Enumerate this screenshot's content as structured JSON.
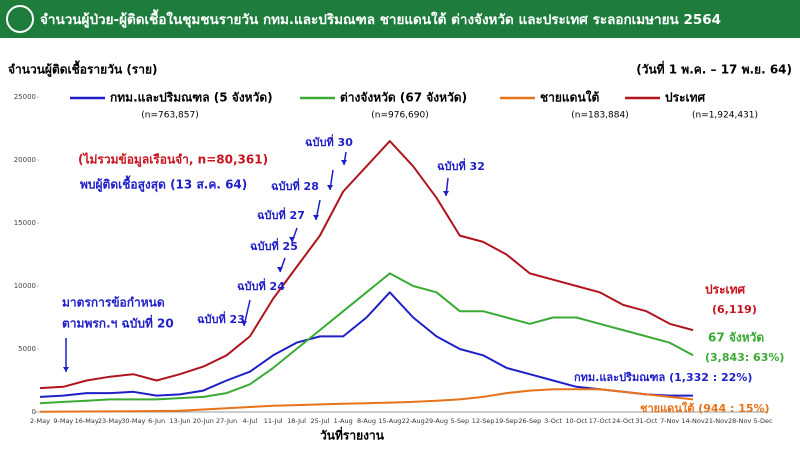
{
  "chart_data": {
    "type": "line",
    "title": "จำนวนผู้ป่วย-ผู้ติดเชื้อในชุมชนรายวัน กทม.และปริมณฑล ชายแดนใต้ ต่างจังหวัด และประเทศ ระลอกเมษายน 2564",
    "subtitle": "(วันที่ 1 พ.ค. – 17 พ.ย. 64)",
    "y_label": "จำนวนผู้ติดเชื้อรายวัน (ราย)",
    "x_label": "วันที่รายงาน",
    "categories": [
      "2-May",
      "9-May",
      "16-May",
      "23-May",
      "30-May",
      "6-Jun",
      "13-Jun",
      "20-Jun",
      "27-Jun",
      "4-Jul",
      "11-Jul",
      "18-Jul",
      "25-Jul",
      "1-Aug",
      "8-Aug",
      "15-Aug",
      "22-Aug",
      "29-Aug",
      "5-Sep",
      "12-Sep",
      "19-Sep",
      "26-Sep",
      "3-Oct",
      "10-Oct",
      "17-Oct",
      "24-Oct",
      "31-Oct",
      "7-Nov",
      "14-Nov",
      "21-Nov",
      "28-Nov",
      "5-Dec"
    ],
    "series": [
      {
        "name": "กทม.และปริมณฑล (5 จังหวัด)",
        "total": "(n=763,857)",
        "color": "#1f1fc8",
        "values": [
          1200,
          1300,
          1500,
          1500,
          1600,
          1300,
          1400,
          1700,
          2500,
          3200,
          4500,
          5500,
          6000,
          6000,
          7500,
          9500,
          7500,
          6000,
          5000,
          4500,
          3500,
          3000,
          2500,
          2000,
          1800,
          1600,
          1400,
          1300,
          1300,
          null,
          null,
          null
        ]
      },
      {
        "name": "ต่างจังหวัด (67 จังหวัด)",
        "total": "(n=976,690)",
        "color": "#3aaa35",
        "values": [
          700,
          800,
          900,
          1000,
          1000,
          1000,
          1100,
          1200,
          1500,
          2200,
          3500,
          5000,
          6500,
          8000,
          9500,
          11000,
          10000,
          9500,
          8000,
          8000,
          7500,
          7000,
          7500,
          7500,
          7000,
          6500,
          6000,
          5500,
          4500,
          null,
          null,
          null
        ]
      },
      {
        "name": "ชายแดนใต้",
        "total": "(n=183,884)",
        "color": "#e8731a",
        "values": [
          20,
          30,
          40,
          50,
          60,
          80,
          100,
          200,
          300,
          400,
          500,
          550,
          600,
          650,
          700,
          750,
          800,
          900,
          1000,
          1200,
          1500,
          1700,
          1800,
          1800,
          1800,
          1600,
          1400,
          1200,
          1000,
          null,
          null,
          null
        ]
      },
      {
        "name": "ประเทศ",
        "total": "(n=1,924,431)",
        "color": "#b0141e",
        "values": [
          1900,
          2000,
          2500,
          2800,
          3000,
          2500,
          3000,
          3600,
          4500,
          6000,
          9000,
          11500,
          14000,
          17500,
          19500,
          21500,
          19500,
          17000,
          14000,
          13500,
          12500,
          11000,
          10500,
          10000,
          9500,
          8500,
          8000,
          7000,
          6500,
          null,
          null,
          null
        ]
      }
    ],
    "ylim": [
      0,
      25000
    ],
    "yticks": [
      0,
      5000,
      10000,
      15000,
      20000,
      25000
    ],
    "annotations": [
      {
        "text": "(ไม่รวมข้อมูลเรือนจำ, n=80,361)",
        "color": "#c8141e"
      },
      {
        "text": "พบผู้ติดเชื้อสูงสุด (13 ส.ค. 64)",
        "color": "#1f1fc8"
      },
      {
        "text": "มาตรการข้อกำหนด",
        "color": "#1f1fc8"
      },
      {
        "text": "ตามพรก.ฯ ฉบับที่ 20",
        "color": "#1f1fc8"
      },
      {
        "text": "ฉบับที่ 23",
        "color": "#1f1fc8"
      },
      {
        "text": "ฉบับที่ 24",
        "color": "#1f1fc8"
      },
      {
        "text": "ฉบับที่ 25",
        "color": "#1f1fc8"
      },
      {
        "text": "ฉบับที่ 27",
        "color": "#1f1fc8"
      },
      {
        "text": "ฉบับที่ 28",
        "color": "#1f1fc8"
      },
      {
        "text": "ฉบับที่ 30",
        "color": "#1f1fc8"
      },
      {
        "text": "ฉบับที่ 32",
        "color": "#1f1fc8"
      },
      {
        "text": "ประเทศ",
        "color": "#c8141e"
      },
      {
        "text": "(6,119)",
        "color": "#c8141e"
      },
      {
        "text": "67 จังหวัด",
        "color": "#3aaa35"
      },
      {
        "text": "(3,843: 63%)",
        "color": "#3aaa35"
      },
      {
        "text": "กทม.และปริมณฑล (1,332 : 22%)",
        "color": "#1f1fc8"
      },
      {
        "text": "ชายแดนใต้ (944 : 15%)",
        "color": "#e8731a"
      }
    ]
  }
}
